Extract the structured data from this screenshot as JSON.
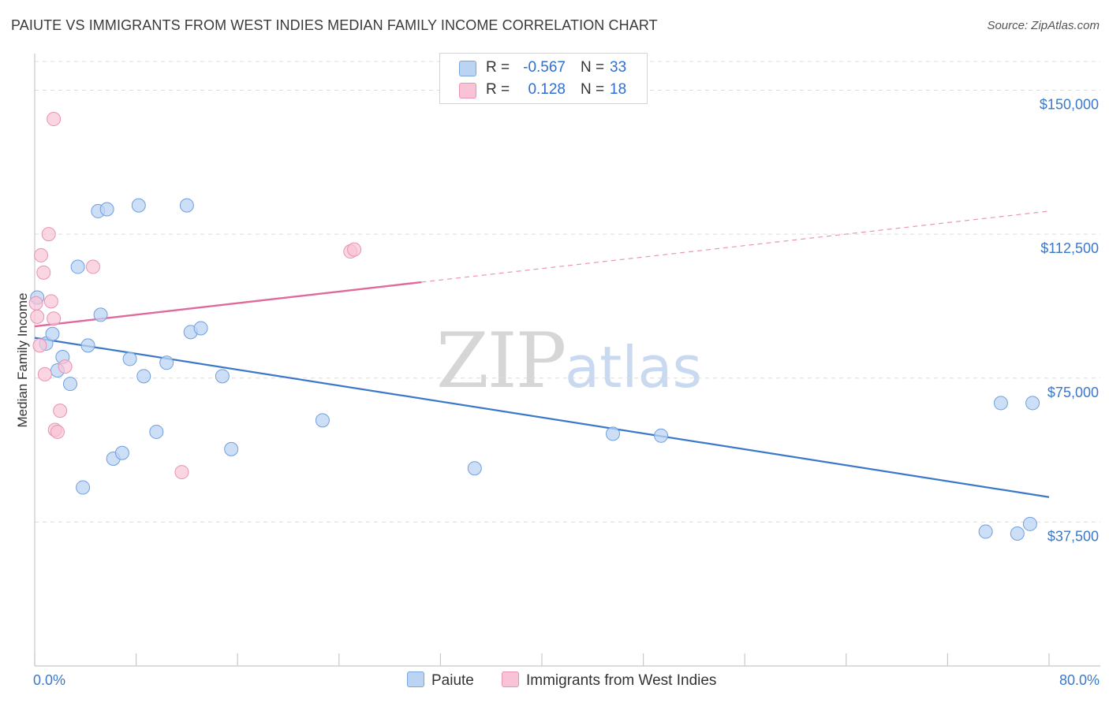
{
  "title": "PAIUTE VS IMMIGRANTS FROM WEST INDIES MEDIAN FAMILY INCOME CORRELATION CHART",
  "source": "Source: ZipAtlas.com",
  "watermark": {
    "zip": "ZIP",
    "atlas": "atlas"
  },
  "colors": {
    "blue": "#3b78c9",
    "blue_fill": "#bcd4f4",
    "pink": "#e0699a",
    "pink_fill": "#f8c3d6"
  },
  "legend": {
    "rows": [
      {
        "r_label": "R =",
        "r_value": "-0.567",
        "n_label": "N =",
        "n_value": "33"
      },
      {
        "r_label": "R =",
        "r_value": "0.128",
        "n_label": "N =",
        "n_value": "18"
      }
    ]
  },
  "chart_data": {
    "type": "scatter",
    "title": "PAIUTE VS IMMIGRANTS FROM WEST INDIES MEDIAN FAMILY INCOME CORRELATION CHART",
    "xlabel": "",
    "ylabel": "Median Family Income",
    "xlim": [
      0,
      80
    ],
    "ylim": [
      0,
      157500
    ],
    "x_tick_labels": [
      "0.0%",
      "80.0%"
    ],
    "y_ticks": [
      37500,
      75000,
      112500,
      150000
    ],
    "y_tick_labels": [
      "$37,500",
      "$75,000",
      "$112,500",
      "$150,000"
    ],
    "grid": true,
    "legend_position": "bottom",
    "series": [
      {
        "name": "Paiute",
        "points": [
          [
            0.2,
            96000
          ],
          [
            0.9,
            84000
          ],
          [
            1.4,
            86500
          ],
          [
            1.8,
            77000
          ],
          [
            2.2,
            80500
          ],
          [
            2.8,
            73500
          ],
          [
            3.4,
            104000
          ],
          [
            3.8,
            46500
          ],
          [
            4.2,
            83500
          ],
          [
            5.0,
            118500
          ],
          [
            5.2,
            91500
          ],
          [
            5.7,
            119000
          ],
          [
            6.2,
            54000
          ],
          [
            6.9,
            55500
          ],
          [
            7.5,
            80000
          ],
          [
            8.2,
            120000
          ],
          [
            8.6,
            75500
          ],
          [
            9.6,
            61000
          ],
          [
            10.4,
            79000
          ],
          [
            12.0,
            120000
          ],
          [
            12.3,
            87000
          ],
          [
            13.1,
            88000
          ],
          [
            14.8,
            75500
          ],
          [
            15.5,
            56500
          ],
          [
            22.7,
            64000
          ],
          [
            34.7,
            51500
          ],
          [
            45.6,
            60500
          ],
          [
            49.4,
            60000
          ],
          [
            75.0,
            35000
          ],
          [
            76.2,
            68500
          ],
          [
            77.5,
            34500
          ],
          [
            78.5,
            37000
          ],
          [
            78.7,
            68500
          ]
        ],
        "trend": {
          "x": [
            0,
            80
          ],
          "y": [
            85500,
            44000
          ]
        }
      },
      {
        "name": "Immigrants from West Indies",
        "points": [
          [
            0.1,
            94500
          ],
          [
            0.2,
            91000
          ],
          [
            0.4,
            83500
          ],
          [
            0.5,
            107000
          ],
          [
            0.7,
            102500
          ],
          [
            0.8,
            76000
          ],
          [
            1.1,
            112500
          ],
          [
            1.3,
            95000
          ],
          [
            1.5,
            142500
          ],
          [
            1.5,
            90500
          ],
          [
            1.6,
            61500
          ],
          [
            1.8,
            61000
          ],
          [
            2.0,
            66500
          ],
          [
            2.4,
            78000
          ],
          [
            4.6,
            104000
          ],
          [
            11.6,
            50500
          ],
          [
            24.9,
            108000
          ],
          [
            25.2,
            108500
          ]
        ],
        "trend": {
          "x": [
            0,
            30.5
          ],
          "y": [
            88500,
            100000
          ],
          "dashed_extension": {
            "x": [
              30.5,
              80
            ],
            "y": [
              100000,
              118500
            ]
          }
        }
      }
    ]
  }
}
